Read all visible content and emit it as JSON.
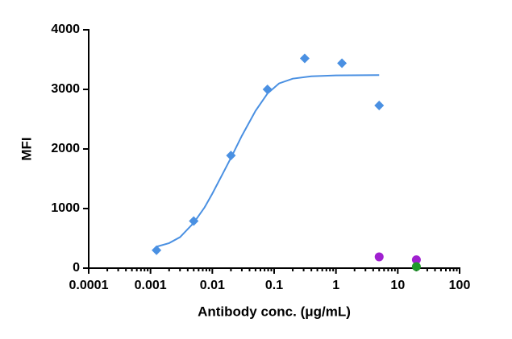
{
  "chart_data": {
    "type": "scatter",
    "xlabel": "Antibody conc. (μg/mL)",
    "ylabel": "MFI",
    "xscale": "log",
    "xlim": [
      0.0001,
      100
    ],
    "xticks": [
      0.0001,
      0.001,
      0.01,
      0.1,
      1,
      10,
      100
    ],
    "ylim": [
      0,
      4000
    ],
    "yticks": [
      0,
      1000,
      2000,
      3000,
      4000
    ],
    "series": [
      {
        "marker": "diamond",
        "color": "#4a90e2",
        "x": [
          0.00125,
          0.005,
          0.02,
          0.078,
          0.3125,
          1.25,
          5
        ],
        "values": [
          300,
          790,
          1890,
          3000,
          3520,
          3440,
          2730
        ]
      },
      {
        "marker": "circle",
        "color": "#a020d0",
        "x": [
          5,
          20
        ],
        "values": [
          190,
          140
        ]
      },
      {
        "marker": "circle",
        "color": "#1f9a2a",
        "x": [
          20
        ],
        "values": [
          25
        ]
      }
    ],
    "curve": {
      "color": "#4a90e2",
      "x": [
        0.00125,
        0.002,
        0.003,
        0.005,
        0.0075,
        0.01,
        0.015,
        0.02,
        0.03,
        0.05,
        0.078,
        0.12,
        0.2,
        0.4,
        1,
        5
      ],
      "values": [
        360,
        420,
        520,
        760,
        1020,
        1250,
        1600,
        1850,
        2220,
        2640,
        2930,
        3100,
        3180,
        3220,
        3235,
        3240
      ]
    }
  }
}
